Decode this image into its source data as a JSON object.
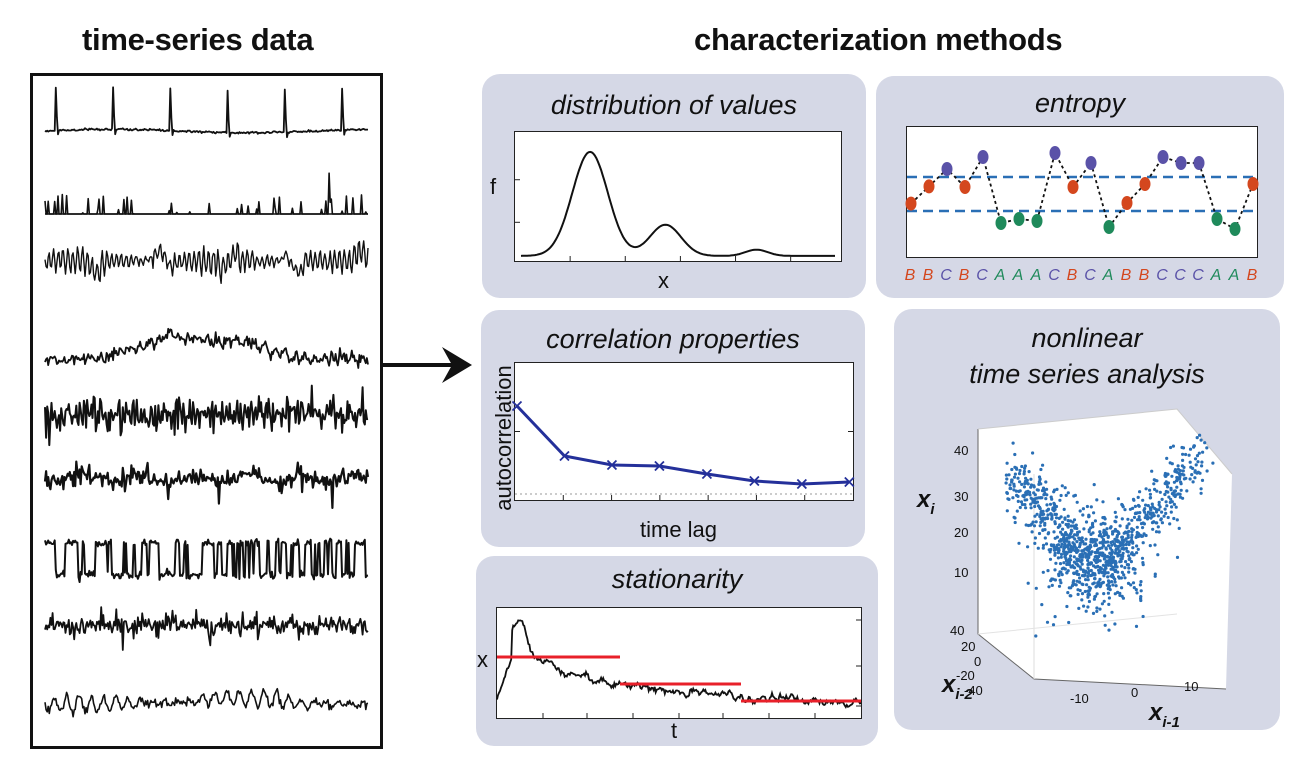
{
  "left_heading": "time-series data",
  "right_heading": "characterization methods",
  "panels": {
    "distribution": {
      "title": "distribution of values",
      "ylabel": "f",
      "xlabel": "x"
    },
    "entropy": {
      "title": "entropy",
      "symbols": [
        "B",
        "B",
        "C",
        "B",
        "C",
        "A",
        "A",
        "A",
        "C",
        "B",
        "C",
        "A",
        "B",
        "B",
        "C",
        "C",
        "C",
        "A",
        "A",
        "B"
      ],
      "colors": {
        "A": "#1f8a5b",
        "B": "#d4471e",
        "C": "#5a52a8"
      }
    },
    "correlation": {
      "title": "correlation properties",
      "ylabel": "autocorrelation",
      "xlabel": "time lag",
      "line_color": "#24309a"
    },
    "stationarity": {
      "title": "stationarity",
      "ylabel": "x",
      "xlabel": "t",
      "segment_color": "#e8202a"
    },
    "nonlinear": {
      "title_line1": "nonlinear",
      "title_line2": "time series analysis",
      "z_label": "x",
      "z_sub": "i",
      "y_label": "x",
      "y_sub": "i-2",
      "x_label": "x",
      "x_sub": "i-1",
      "z_ticks": [
        "40",
        "30",
        "20",
        "10"
      ],
      "y_ticks": [
        "40",
        "20",
        "0",
        "-20",
        "-40"
      ],
      "x_ticks": [
        "-10",
        "0",
        "10"
      ],
      "point_color": "#2a6fb5"
    }
  }
}
